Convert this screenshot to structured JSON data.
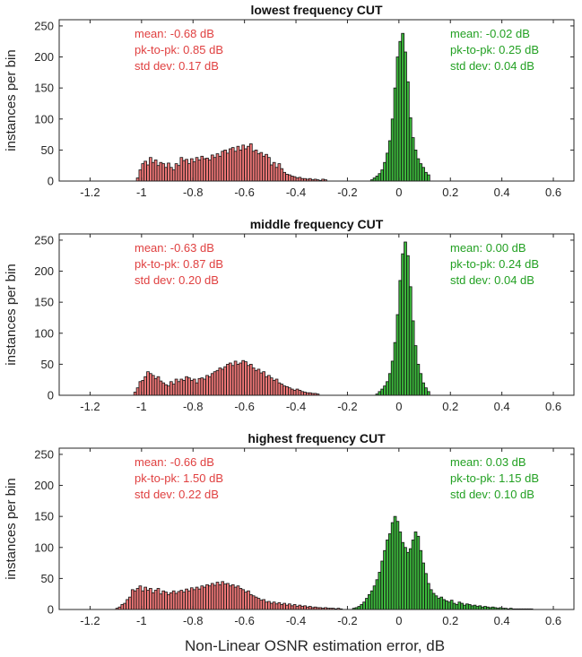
{
  "figure": {
    "xlabel": "Non-Linear OSNR estimation error, dB",
    "colors": {
      "red_fill": "#f07878",
      "green_fill": "#3cb83c",
      "red_text": "#e04040",
      "green_text": "#22a022",
      "bar_edge": "#111111"
    }
  },
  "chart_data": [
    {
      "type": "histogram",
      "title": "lowest frequency CUT",
      "ylabel": "instances per bin",
      "xlim": [
        -1.32,
        0.68
      ],
      "ylim": [
        0,
        260
      ],
      "xticks": [
        "-1.2",
        "-1",
        "-0.8",
        "-0.6",
        "-0.4",
        "-0.2",
        "0",
        "0.2",
        "0.4",
        "0.6"
      ],
      "yticks": [
        "0",
        "50",
        "100",
        "150",
        "200",
        "250"
      ],
      "bin_width": 0.01,
      "series": [
        {
          "name": "red",
          "stats": [
            "mean: -0.68 dB",
            "pk-to-pk: 0.85 dB",
            "std dev: 0.17 dB"
          ],
          "x_start": -1.02,
          "values": [
            5,
            18,
            28,
            32,
            26,
            38,
            30,
            34,
            25,
            30,
            28,
            22,
            29,
            22,
            18,
            28,
            25,
            38,
            33,
            35,
            28,
            36,
            31,
            38,
            34,
            40,
            36,
            37,
            34,
            42,
            38,
            44,
            40,
            48,
            50,
            45,
            52,
            54,
            48,
            56,
            50,
            58,
            52,
            56,
            60,
            48,
            50,
            44,
            46,
            40,
            43,
            38,
            26,
            30,
            22,
            28,
            20,
            14,
            11,
            10,
            8,
            7,
            5,
            6,
            4,
            4,
            3,
            4,
            2,
            3,
            2,
            1,
            3,
            2
          ]
        },
        {
          "name": "green",
          "stats": [
            "mean: -0.02 dB",
            "pk-to-pk: 0.25 dB",
            "std dev: 0.04 dB"
          ],
          "x_start": -0.11,
          "values": [
            2,
            5,
            8,
            12,
            18,
            30,
            45,
            65,
            100,
            150,
            200,
            225,
            238,
            208,
            160,
            102,
            70,
            50,
            36,
            28,
            22,
            14,
            10
          ]
        }
      ]
    },
    {
      "type": "histogram",
      "title": "middle frequency CUT",
      "ylabel": "instances per bin",
      "xlim": [
        -1.32,
        0.68
      ],
      "ylim": [
        0,
        260
      ],
      "xticks": [
        "-1.2",
        "-1",
        "-0.8",
        "-0.6",
        "-0.4",
        "-0.2",
        "0",
        "0.2",
        "0.4",
        "0.6"
      ],
      "yticks": [
        "0",
        "50",
        "100",
        "150",
        "200",
        "250"
      ],
      "bin_width": 0.01,
      "series": [
        {
          "name": "red",
          "stats": [
            "mean: -0.63 dB",
            "pk-to-pk: 0.87 dB",
            "std dev: 0.20 dB"
          ],
          "x_start": -1.03,
          "values": [
            5,
            12,
            22,
            24,
            30,
            38,
            35,
            32,
            27,
            30,
            23,
            20,
            17,
            15,
            22,
            18,
            26,
            22,
            26,
            24,
            30,
            28,
            24,
            26,
            20,
            27,
            28,
            26,
            32,
            30,
            35,
            38,
            40,
            44,
            42,
            46,
            50,
            52,
            48,
            55,
            50,
            52,
            56,
            54,
            48,
            50,
            44,
            40,
            42,
            36,
            38,
            30,
            32,
            28,
            24,
            26,
            20,
            18,
            15,
            14,
            12,
            10,
            8,
            10,
            8,
            6,
            5,
            4,
            4,
            3,
            3,
            2
          ]
        },
        {
          "name": "green",
          "stats": [
            "mean: 0.00 dB",
            "pk-to-pk: 0.24 dB",
            "std dev: 0.04 dB"
          ],
          "x_start": -0.09,
          "values": [
            2,
            6,
            10,
            15,
            22,
            35,
            55,
            85,
            130,
            185,
            228,
            247,
            225,
            175,
            120,
            80,
            50,
            35,
            20,
            12,
            6
          ]
        }
      ]
    },
    {
      "type": "histogram",
      "title": "highest frequency CUT",
      "ylabel": "instances per bin",
      "xlim": [
        -1.32,
        0.68
      ],
      "ylim": [
        0,
        260
      ],
      "xticks": [
        "-1.2",
        "-1",
        "-0.8",
        "-0.6",
        "-0.4",
        "-0.2",
        "0",
        "0.2",
        "0.4",
        "0.6"
      ],
      "yticks": [
        "0",
        "50",
        "100",
        "150",
        "200",
        "250"
      ],
      "bin_width": 0.01,
      "series": [
        {
          "name": "red",
          "stats": [
            "mean: -0.66 dB",
            "pk-to-pk: 1.50 dB",
            "std dev: 0.22 dB"
          ],
          "x_start": -1.1,
          "values": [
            2,
            4,
            8,
            10,
            16,
            20,
            32,
            30,
            34,
            38,
            30,
            36,
            31,
            34,
            27,
            31,
            34,
            25,
            30,
            28,
            24,
            27,
            30,
            26,
            29,
            31,
            28,
            33,
            30,
            35,
            32,
            36,
            33,
            38,
            36,
            40,
            38,
            42,
            39,
            44,
            40,
            45,
            41,
            42,
            38,
            40,
            36,
            38,
            34,
            32,
            28,
            30,
            24,
            22,
            20,
            18,
            15,
            16,
            12,
            13,
            10,
            12,
            9,
            11,
            8,
            10,
            7,
            9,
            6,
            8,
            5,
            7,
            5,
            6,
            4,
            5,
            3,
            4,
            3,
            3,
            2,
            3,
            2,
            2,
            2,
            1,
            2,
            1
          ]
        },
        {
          "name": "green",
          "stats": [
            "mean: 0.03 dB",
            "pk-to-pk: 1.15 dB",
            "std dev: 0.10 dB"
          ],
          "x_start": -0.18,
          "values": [
            2,
            3,
            5,
            8,
            12,
            18,
            24,
            30,
            38,
            48,
            60,
            78,
            95,
            112,
            122,
            140,
            150,
            142,
            125,
            108,
            100,
            92,
            98,
            112,
            125,
            118,
            95,
            75,
            58,
            42,
            32,
            26,
            22,
            18,
            20,
            16,
            14,
            12,
            15,
            10,
            8,
            12,
            10,
            7,
            9,
            8,
            6,
            7,
            5,
            6,
            4,
            5,
            4,
            3,
            4,
            3,
            2,
            3,
            2,
            2,
            1,
            2,
            1,
            1,
            1,
            1,
            1,
            1,
            1,
            1
          ]
        }
      ]
    }
  ]
}
